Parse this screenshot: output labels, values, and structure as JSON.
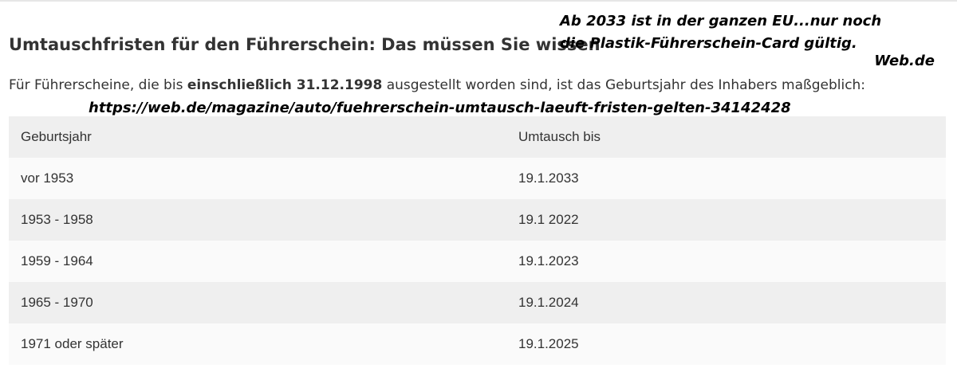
{
  "article": {
    "heading": "Umtauschfristen für den Führerschein: Das müssen Sie wissen",
    "intro_before": "Für Führerscheine, die bis ",
    "intro_bold": "einschließlich 31.12.1998",
    "intro_after": " ausgestellt worden sind, ist das Geburtsjahr des Inhabers maßgeblich:"
  },
  "annotation": {
    "line1": "Ab 2033 ist in der ganzen EU...nur noch",
    "line2": "die Plastik-Führerschein-Card gültig.",
    "source": "Web.de",
    "url": "https://web.de/magazine/auto/fuehrerschein-umtausch-laeuft-fristen-gelten-34142428"
  },
  "table": {
    "headers": [
      "Geburtsjahr",
      "Umtausch bis"
    ],
    "rows": [
      [
        "vor 1953",
        "19.1.2033"
      ],
      [
        "1953 - 1958",
        "19.1 2022"
      ],
      [
        "1959 - 1964",
        "19.1.2023"
      ],
      [
        "1965 - 1970",
        "19.1.2024"
      ],
      [
        "1971 oder später",
        "19.1.2025"
      ]
    ]
  }
}
